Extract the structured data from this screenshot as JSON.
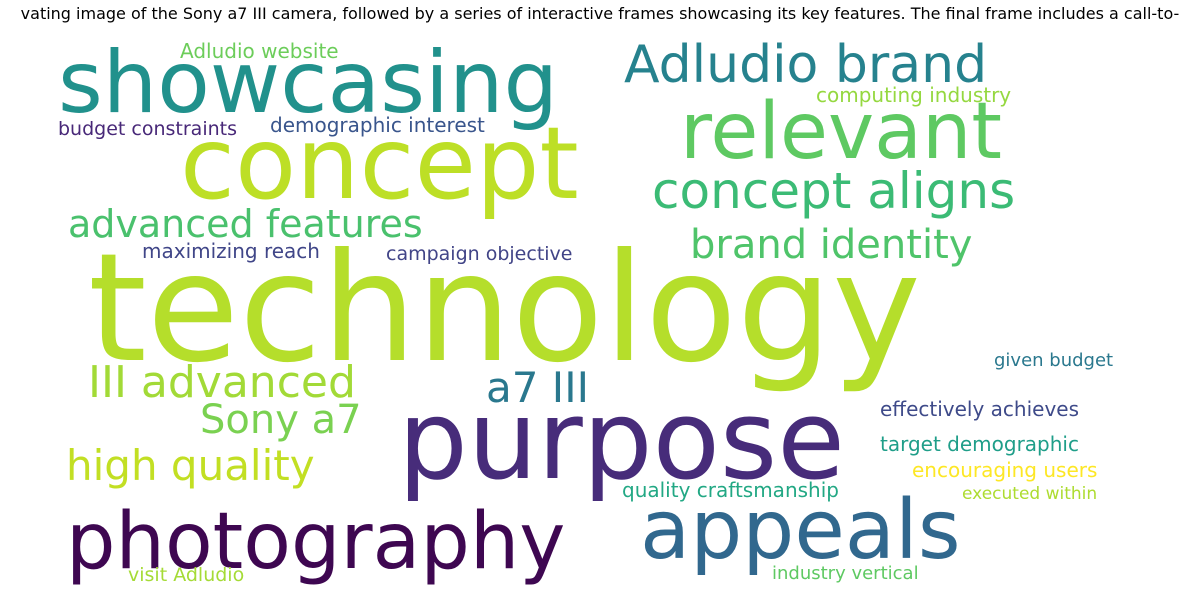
{
  "title": "vating image of the Sony a7 III camera, followed by a series of interactive frames showcasing its key features. The final frame includes a call-to-",
  "words": [
    {
      "text": "technology",
      "color": "#b5de2b"
    },
    {
      "text": "purpose",
      "color": "#472c7a"
    },
    {
      "text": "concept",
      "color": "#bddf26"
    },
    {
      "text": "showcasing",
      "color": "#21918c"
    },
    {
      "text": "photography",
      "color": "#3e0751"
    },
    {
      "text": "appeals",
      "color": "#31688e"
    },
    {
      "text": "relevant",
      "color": "#5ec962"
    },
    {
      "text": "Adludio brand",
      "color": "#26828e"
    },
    {
      "text": "concept aligns",
      "color": "#3bbb75"
    },
    {
      "text": "advanced features",
      "color": "#4ac16d"
    },
    {
      "text": "brand identity",
      "color": "#4fc46a"
    },
    {
      "text": "III advanced",
      "color": "#a2da37"
    },
    {
      "text": "a7 III",
      "color": "#2a788e"
    },
    {
      "text": "Sony a7",
      "color": "#7ad151"
    },
    {
      "text": "high quality",
      "color": "#c2df23"
    },
    {
      "text": "Adludio website",
      "color": "#6ccd5a"
    },
    {
      "text": "computing industry",
      "color": "#95d840"
    },
    {
      "text": "demographic interest",
      "color": "#39558c"
    },
    {
      "text": "budget constraints",
      "color": "#482878"
    },
    {
      "text": "maximizing reach",
      "color": "#404688"
    },
    {
      "text": "campaign objective",
      "color": "#414487"
    },
    {
      "text": "given budget",
      "color": "#2a788e"
    },
    {
      "text": "effectively achieves",
      "color": "#3e4a89"
    },
    {
      "text": "target demographic",
      "color": "#1f9e89"
    },
    {
      "text": "encouraging users",
      "color": "#fde725"
    },
    {
      "text": "quality craftsmanship",
      "color": "#22a884"
    },
    {
      "text": "executed within",
      "color": "#addc30"
    },
    {
      "text": "visit Adludio",
      "color": "#a5db36"
    },
    {
      "text": "industry vertical",
      "color": "#5ec962"
    }
  ]
}
